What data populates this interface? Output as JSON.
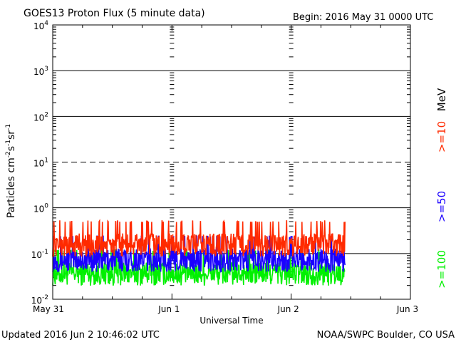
{
  "header": {
    "title": "GOES13 Proton Flux (5 minute data)",
    "begin": "Begin: 2016 May 31 0000 UTC"
  },
  "footer": {
    "updated": "Updated 2016 Jun  2 10:46:02 UTC",
    "credit": "NOAA/SWPC Boulder, CO USA"
  },
  "chart_data": {
    "type": "line",
    "title": "GOES13 Proton Flux (5 minute data)",
    "xlabel": "Universal Time",
    "ylabel_parts": {
      "p1": "Particles cm",
      "e1": "-2",
      "p2": "s",
      "e2": "-1",
      "p3": "sr",
      "e3": "-1"
    },
    "y_scale": "log",
    "ylim_exp": [
      -2,
      4
    ],
    "y_ticks": [
      {
        "base": "10",
        "exp": "-2"
      },
      {
        "base": "10",
        "exp": "-1"
      },
      {
        "base": "10",
        "exp": "0"
      },
      {
        "base": "10",
        "exp": "1"
      },
      {
        "base": "10",
        "exp": "2"
      },
      {
        "base": "10",
        "exp": "3"
      },
      {
        "base": "10",
        "exp": "4"
      }
    ],
    "xlim_days": [
      0,
      3
    ],
    "x_ticks": [
      {
        "label": "May 31",
        "day": 0
      },
      {
        "label": "Jun 1",
        "day": 1
      },
      {
        "label": "Jun 2",
        "day": 2
      },
      {
        "label": "Jun 3",
        "day": 3
      }
    ],
    "data_end_day": 2.45,
    "threshold_exp": 1,
    "legend_unit": "MeV",
    "series": [
      {
        "name": ">=10",
        "color": "#ff2a00",
        "x_days": [
          0,
          0.25,
          0.5,
          0.75,
          1.0,
          1.25,
          1.5,
          1.75,
          2.0,
          2.25,
          2.45
        ],
        "flux": [
          0.15,
          0.15,
          0.15,
          0.15,
          0.15,
          0.15,
          0.15,
          0.15,
          0.15,
          0.15,
          0.15
        ]
      },
      {
        "name": ">=50",
        "color": "#1a00ff",
        "x_days": [
          0,
          0.25,
          0.5,
          0.75,
          1.0,
          1.25,
          1.5,
          1.75,
          2.0,
          2.25,
          2.45
        ],
        "flux": [
          0.07,
          0.07,
          0.07,
          0.07,
          0.07,
          0.07,
          0.07,
          0.07,
          0.07,
          0.07,
          0.07
        ]
      },
      {
        "name": ">=100",
        "color": "#00f000",
        "x_days": [
          0,
          0.25,
          0.5,
          0.75,
          1.0,
          1.25,
          1.5,
          1.75,
          2.0,
          2.25,
          2.45
        ],
        "flux": [
          0.035,
          0.035,
          0.035,
          0.035,
          0.035,
          0.035,
          0.035,
          0.035,
          0.035,
          0.035,
          0.035
        ]
      }
    ]
  }
}
